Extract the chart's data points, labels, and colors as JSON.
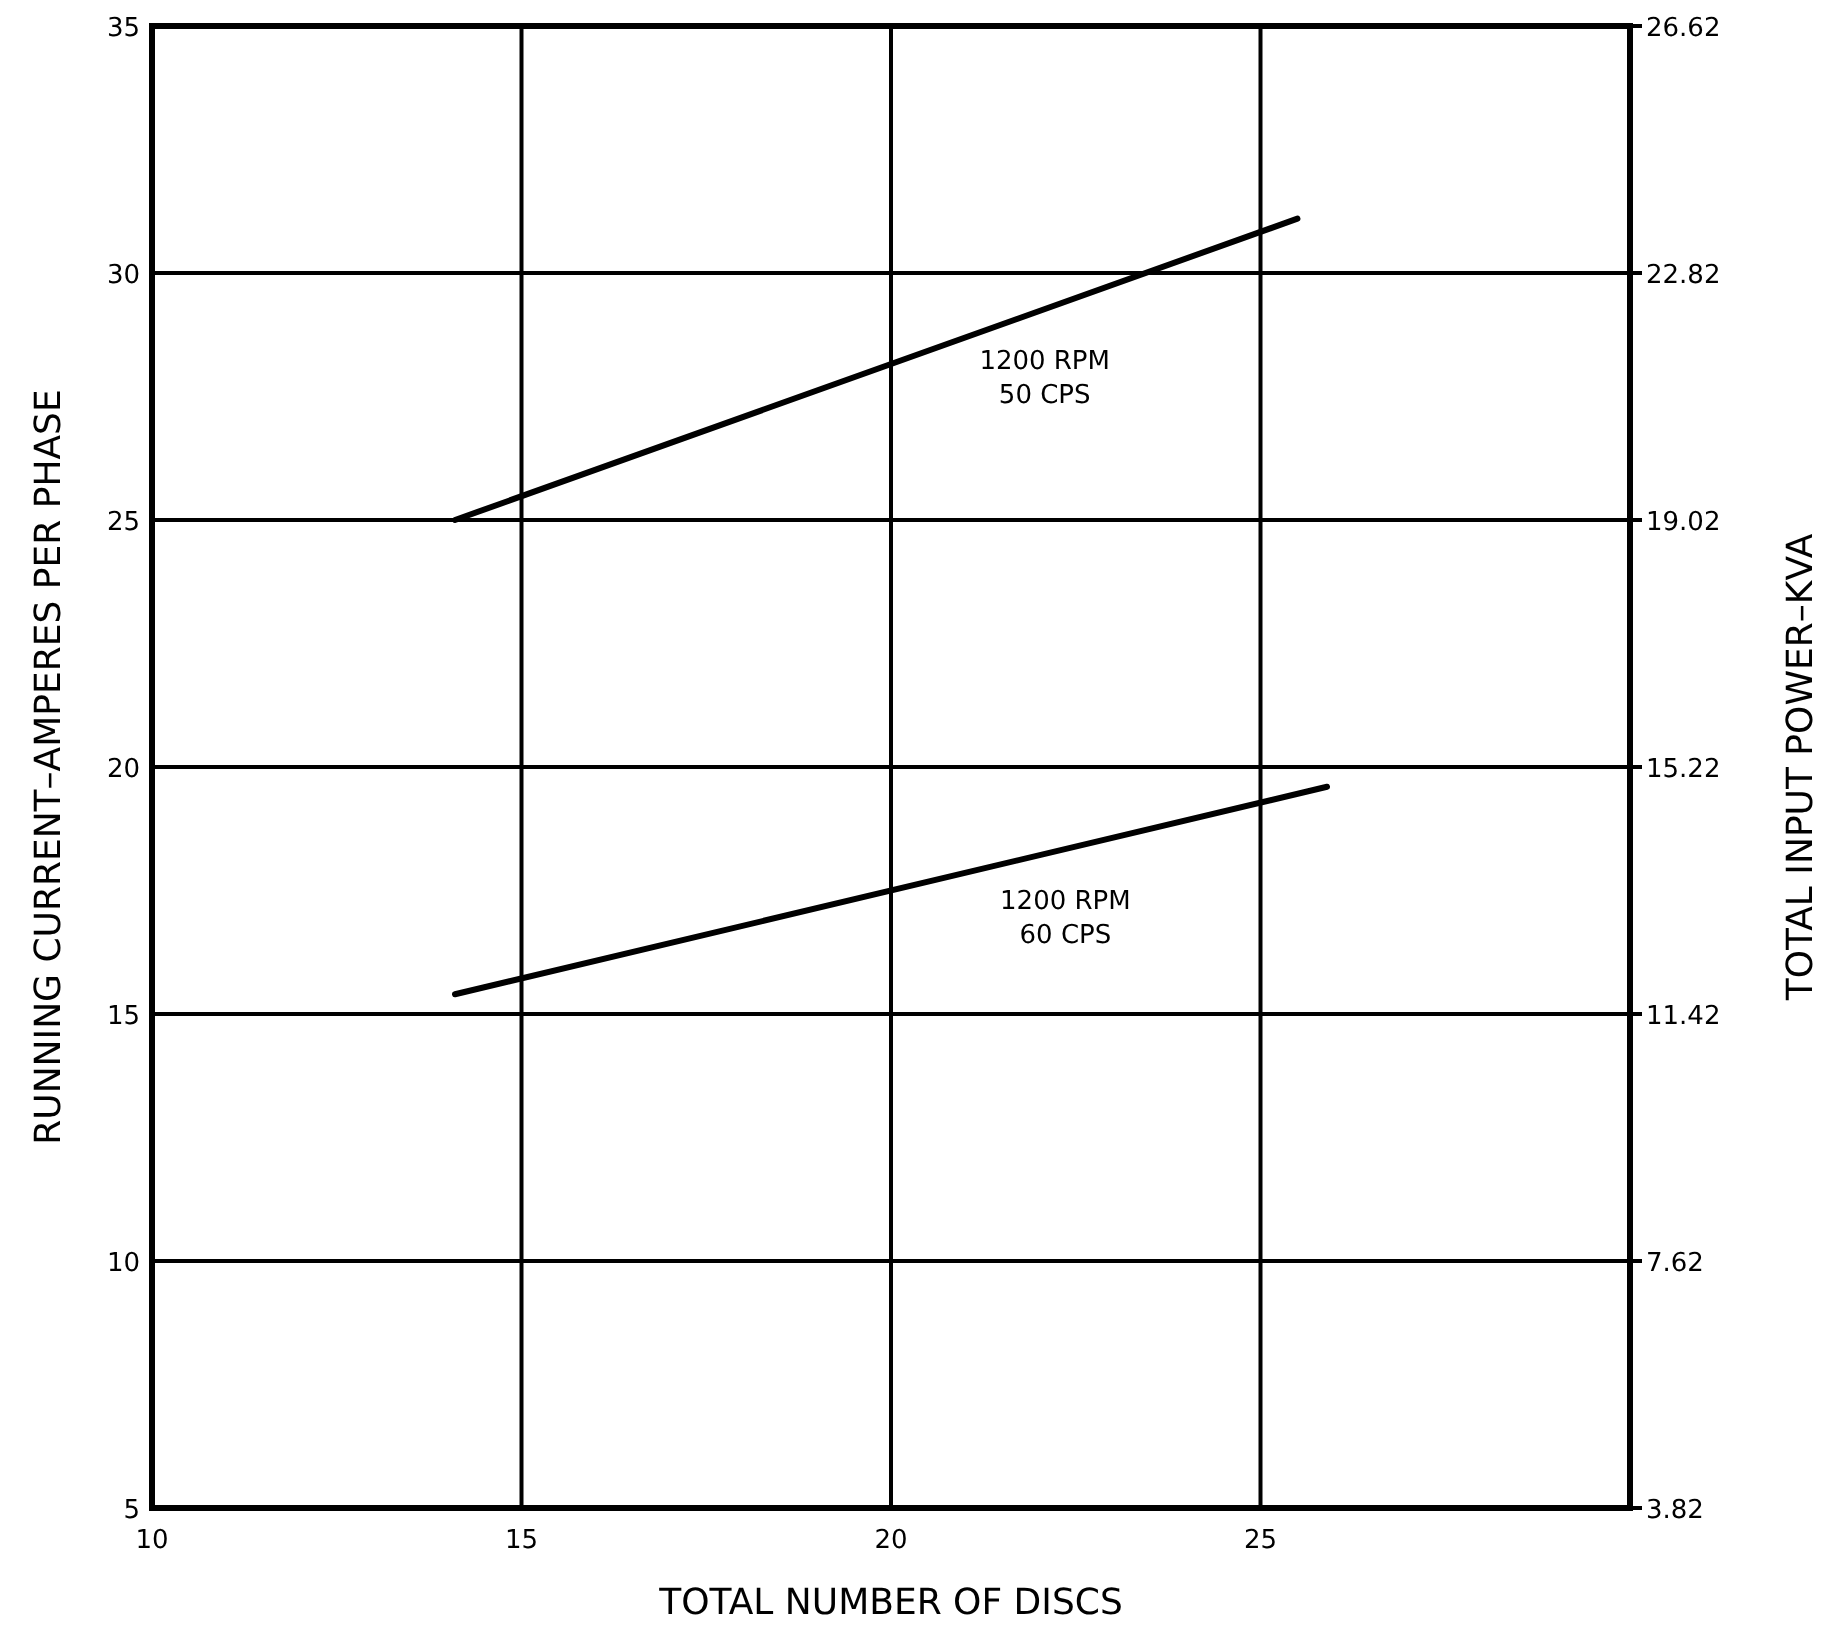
{
  "chart_data": {
    "type": "line",
    "xlabel": "TOTAL NUMBER OF DISCS",
    "ylabel": "RUNNING CURRENT–AMPERES PER PHASE",
    "y2label": "TOTAL INPUT POWER–KVA",
    "xlim": [
      10,
      30
    ],
    "xticks": [
      10,
      15,
      20,
      25,
      {
        "value": 30,
        "label": null
      }
    ],
    "ylim": [
      5,
      35
    ],
    "yticks": [
      5,
      10,
      15,
      20,
      25,
      30,
      35
    ],
    "y2lim": [
      3.82,
      26.62
    ],
    "y2ticks": [
      3.82,
      7.62,
      11.42,
      15.22,
      19.02,
      22.82,
      26.62
    ],
    "grid": true,
    "marker": "none",
    "line_style": "solid",
    "series": [
      {
        "color": "#000000",
        "x": [
          14.1,
          25.5
        ],
        "values": [
          25.0,
          31.1
        ]
      },
      {
        "color": "#000000",
        "x": [
          14.1,
          25.9
        ],
        "values": [
          15.4,
          19.6
        ]
      }
    ],
    "annotations": [
      "1200 RPM\n50 CPS",
      "1200 RPM\n60 CPS"
    ]
  }
}
